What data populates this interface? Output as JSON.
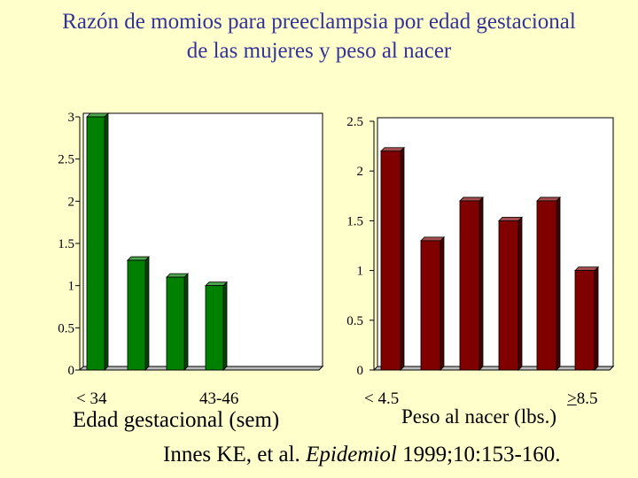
{
  "title": "Razón de momios para preeclampsia por edad gestacional de las mujeres y peso al nacer",
  "citation": {
    "authors": "Innes KE, et al.",
    "journal": "Epidemiol",
    "details": "1999;10:153-160."
  },
  "colors": {
    "background": "#ffffcc",
    "title": "#333399",
    "left_bars": "#008000",
    "right_bars": "#800000"
  },
  "chart_data": [
    {
      "type": "bar",
      "xlabel": "Edad gestacional (sem)",
      "ylabel": "",
      "categories": [
        "< 34",
        "",
        "",
        "43-46"
      ],
      "values": [
        3.0,
        1.3,
        1.1,
        1.0
      ],
      "ylim": [
        0,
        3
      ],
      "yticks": [
        "0",
        "0.5",
        "1",
        "1.5",
        "2",
        "2.5",
        "3"
      ],
      "bar_color": "#008000",
      "grid": false
    },
    {
      "type": "bar",
      "xlabel": "Peso al nacer (lbs.)",
      "ylabel": "",
      "categories": [
        "< 4.5",
        "",
        "",
        "",
        "",
        ">8.5"
      ],
      "values": [
        2.2,
        1.3,
        1.7,
        1.5,
        1.7,
        1.0
      ],
      "ylim": [
        0,
        2.5
      ],
      "yticks": [
        "0",
        "0.5",
        "1",
        "1.5",
        "2",
        "2.5"
      ],
      "bar_color": "#800000",
      "grid": false
    }
  ]
}
